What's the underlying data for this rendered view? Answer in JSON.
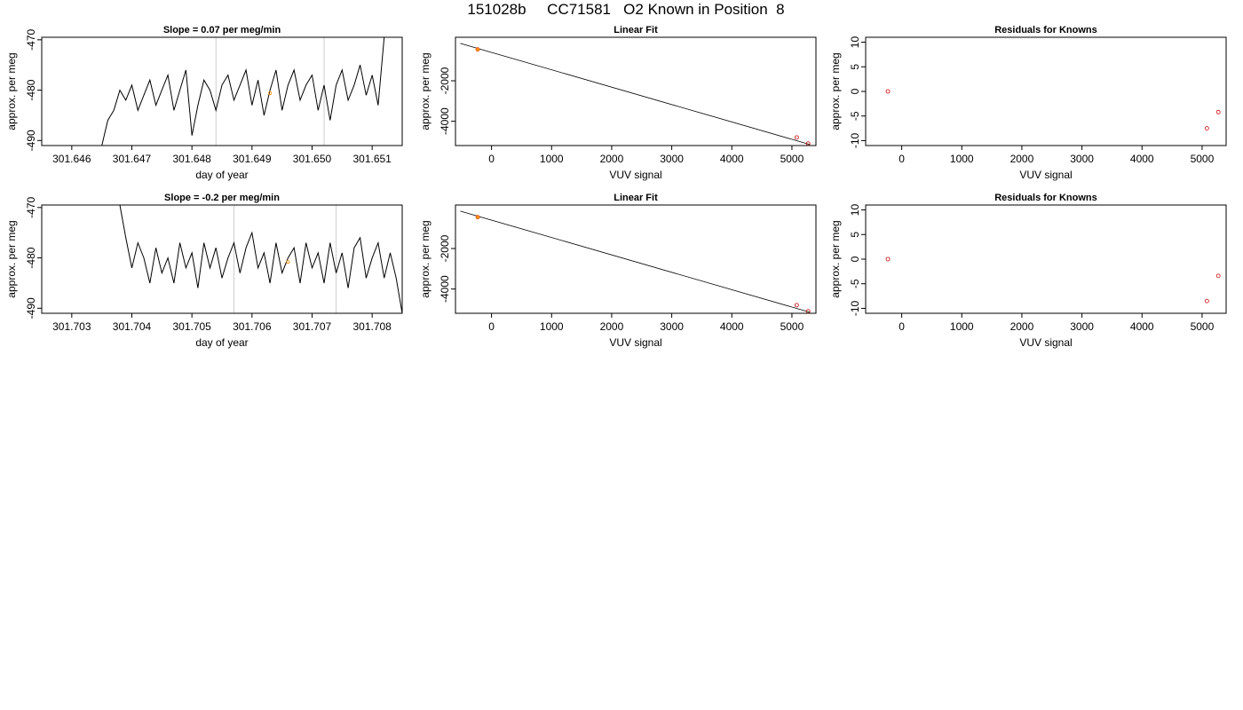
{
  "title": "151028b     CC71581   O2 Known in Position  8",
  "colors": {
    "line": "#000000",
    "refline": "#cccccc",
    "known": "#ff8c00",
    "resid": "#cc0000"
  },
  "chart_data": [
    {
      "type": "line",
      "title": "Slope =  0.07  per meg/min",
      "xlabel": "day of year",
      "ylabel": "approx. per meg",
      "xlim": [
        301.6455,
        301.6515
      ],
      "ylim": [
        -491,
        -469.5
      ],
      "xticks": [
        "301.646",
        "301.647",
        "301.648",
        "301.649",
        "301.650",
        "301.651"
      ],
      "yticks": [
        "-470",
        "-480",
        "-490"
      ],
      "vlines": [
        301.6484,
        301.6502
      ],
      "marker": {
        "x": 301.6493,
        "y": -480.6
      },
      "series": [
        {
          "x": [
            301.6465,
            301.6466,
            301.6467,
            301.6468,
            301.6469,
            301.647,
            301.6471,
            301.6472,
            301.6473,
            301.6474,
            301.6475,
            301.6476,
            301.6477,
            301.6478,
            301.6479,
            301.648,
            301.6481,
            301.6482,
            301.6483,
            301.6484,
            301.6485,
            301.6486,
            301.6487,
            301.6488,
            301.6489,
            301.649,
            301.6491,
            301.6492,
            301.6493,
            301.6494,
            301.6495,
            301.6496,
            301.6497,
            301.6498,
            301.6499,
            301.65,
            301.6501,
            301.6502,
            301.6503,
            301.6504,
            301.6505,
            301.6506,
            301.6507,
            301.6508,
            301.6509,
            301.651,
            301.6511,
            301.6512
          ],
          "y": [
            -491,
            -486,
            -484,
            -480,
            -482,
            -479,
            -484,
            -481,
            -478,
            -483,
            -480,
            -477,
            -484,
            -480,
            -476,
            -489,
            -483,
            -478,
            -480,
            -484,
            -479,
            -477,
            -482,
            -479,
            -476,
            -483,
            -478,
            -485,
            -480,
            -476,
            -484,
            -479,
            -476,
            -482,
            -479,
            -477,
            -484,
            -479,
            -486,
            -479,
            -476,
            -482,
            -479,
            -475,
            -481,
            -477,
            -483,
            -469.5
          ]
        }
      ]
    },
    {
      "type": "line",
      "title": "Linear Fit",
      "xlabel": "VUV signal",
      "ylabel": "approx. per meg",
      "xlim": [
        -600,
        5400
      ],
      "ylim": [
        -5200,
        150
      ],
      "xticks": [
        "0",
        "1000",
        "2000",
        "3000",
        "4000",
        "5000"
      ],
      "yticks": [
        "-2000",
        "-4000"
      ],
      "fit_line": {
        "x": [
          -520,
          5300
        ],
        "y": [
          -150,
          -5150
        ]
      },
      "points_known": [
        {
          "x": -230,
          "y": -450
        }
      ],
      "points": [
        {
          "x": -230,
          "y": -450
        },
        {
          "x": 5080,
          "y": -4800
        },
        {
          "x": 5270,
          "y": -5100
        }
      ]
    },
    {
      "type": "scatter",
      "title": "Residuals for Knowns",
      "xlabel": "VUV signal",
      "ylabel": "approx. per meg",
      "xlim": [
        -600,
        5400
      ],
      "ylim": [
        -11,
        11
      ],
      "xticks": [
        "0",
        "1000",
        "2000",
        "3000",
        "4000",
        "5000"
      ],
      "yticks": [
        "10",
        "5",
        "0",
        "-5",
        "-10"
      ],
      "points": [
        {
          "x": -230,
          "y": 0
        },
        {
          "x": 5080,
          "y": -7.5
        },
        {
          "x": 5270,
          "y": -4.2
        }
      ]
    },
    {
      "type": "line",
      "title": "Slope =  -0.2  per meg/min",
      "xlabel": "day of year",
      "ylabel": "approx. per meg",
      "xlim": [
        301.7025,
        301.7085
      ],
      "ylim": [
        -491,
        -469.5
      ],
      "xticks": [
        "301.703",
        "301.704",
        "301.705",
        "301.706",
        "301.707",
        "301.708"
      ],
      "yticks": [
        "-470",
        "-480",
        "-490"
      ],
      "vlines": [
        301.7057,
        301.7074
      ],
      "marker": {
        "x": 301.7066,
        "y": -480.8
      },
      "series": [
        {
          "x": [
            301.7038,
            301.7039,
            301.704,
            301.7041,
            301.7042,
            301.7043,
            301.7044,
            301.7045,
            301.7046,
            301.7047,
            301.7048,
            301.7049,
            301.705,
            301.7051,
            301.7052,
            301.7053,
            301.7054,
            301.7055,
            301.7056,
            301.7057,
            301.7058,
            301.7059,
            301.706,
            301.7061,
            301.7062,
            301.7063,
            301.7064,
            301.7065,
            301.7066,
            301.7067,
            301.7068,
            301.7069,
            301.707,
            301.7071,
            301.7072,
            301.7073,
            301.7074,
            301.7075,
            301.7076,
            301.7077,
            301.7078,
            301.7079,
            301.708,
            301.7081,
            301.7082,
            301.7083,
            301.7084,
            301.7085
          ],
          "y": [
            -469.5,
            -476,
            -482,
            -477,
            -480,
            -485,
            -478,
            -483,
            -480,
            -485,
            -477,
            -482,
            -479,
            -486,
            -477,
            -482,
            -478,
            -484,
            -480,
            -477,
            -483,
            -478,
            -475,
            -482,
            -479,
            -485,
            -477,
            -483,
            -480,
            -478,
            -485,
            -477,
            -482,
            -479,
            -485,
            -477,
            -483,
            -479,
            -486,
            -478,
            -476,
            -484,
            -480,
            -477,
            -484,
            -479,
            -484,
            -491
          ]
        }
      ]
    },
    {
      "type": "line",
      "title": "Linear Fit",
      "xlabel": "VUV signal",
      "ylabel": "approx. per meg",
      "xlim": [
        -600,
        5400
      ],
      "ylim": [
        -5200,
        150
      ],
      "xticks": [
        "0",
        "1000",
        "2000",
        "3000",
        "4000",
        "5000"
      ],
      "yticks": [
        "-2000",
        "-4000"
      ],
      "fit_line": {
        "x": [
          -520,
          5300
        ],
        "y": [
          -150,
          -5150
        ]
      },
      "points_known": [
        {
          "x": -230,
          "y": -450
        }
      ],
      "points": [
        {
          "x": -230,
          "y": -450
        },
        {
          "x": 5080,
          "y": -4800
        },
        {
          "x": 5270,
          "y": -5100
        }
      ]
    },
    {
      "type": "scatter",
      "title": "Residuals for Knowns",
      "xlabel": "VUV signal",
      "ylabel": "approx. per meg",
      "xlim": [
        -600,
        5400
      ],
      "ylim": [
        -11,
        11
      ],
      "xticks": [
        "0",
        "1000",
        "2000",
        "3000",
        "4000",
        "5000"
      ],
      "yticks": [
        "10",
        "5",
        "0",
        "-5",
        "-10"
      ],
      "points": [
        {
          "x": -230,
          "y": 0
        },
        {
          "x": 5080,
          "y": -8.5
        },
        {
          "x": 5270,
          "y": -3.4
        }
      ]
    }
  ]
}
